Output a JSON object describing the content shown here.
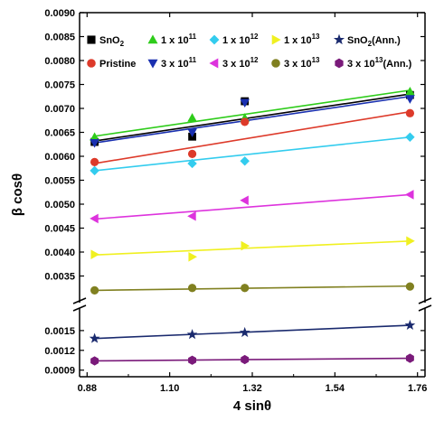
{
  "chart_data": {
    "type": "scatter",
    "xlabel": "4 sinθ",
    "ylabel": "β cosθ",
    "xlim": [
      0.86,
      1.78
    ],
    "x_ticks": [
      "0.88",
      "1.10",
      "1.32",
      "1.54",
      "1.76"
    ],
    "y_axis_break": {
      "between": [
        0.0018,
        0.003
      ]
    },
    "upper_panel": {
      "ylim": [
        0.003,
        0.009
      ],
      "y_ticks": [
        "0.0035",
        "0.0040",
        "0.0045",
        "0.0050",
        "0.0055",
        "0.0060",
        "0.0065",
        "0.0070",
        "0.0075",
        "0.0080",
        "0.0085",
        "0.0090"
      ]
    },
    "lower_panel": {
      "ylim": [
        0.0008,
        0.0018
      ],
      "y_ticks": [
        "0.0009",
        "0.0012",
        "0.0015"
      ]
    },
    "x": [
      0.9,
      1.16,
      1.3,
      1.74
    ],
    "legend_position": "top",
    "series": [
      {
        "name": "SnO2",
        "name_main": "SnO",
        "name_sub": "2",
        "name_sup": "",
        "name_tail": "",
        "marker": "square",
        "color": "#000000",
        "values": [
          0.0063,
          0.00641,
          0.00715,
          0.00728
        ],
        "fit": [
          0.00632,
          0.0073
        ]
      },
      {
        "name": "1 x 10^11",
        "name_main": "1 x 10",
        "name_sub": "",
        "name_sup": "11",
        "name_tail": "",
        "marker": "triangle-up",
        "color": "#2ecc1a",
        "values": [
          0.0064,
          0.0068,
          0.0068,
          0.00735
        ],
        "fit": [
          0.00642,
          0.00738
        ]
      },
      {
        "name": "1 x 10^12",
        "name_main": "1 x 10",
        "name_sub": "",
        "name_sup": "12",
        "name_tail": "",
        "marker": "diamond",
        "color": "#33ccee",
        "values": [
          0.0057,
          0.00585,
          0.0059,
          0.0064
        ],
        "fit": [
          0.0057,
          0.0064
        ]
      },
      {
        "name": "1 x 10^13",
        "name_main": "1 x 10",
        "name_sub": "",
        "name_sup": "13",
        "name_tail": "",
        "marker": "triangle-right",
        "color": "#f0f020",
        "values": [
          0.00395,
          0.0039,
          0.00413,
          0.00423
        ],
        "fit": [
          0.00394,
          0.00423
        ]
      },
      {
        "name": "SnO2(Ann.)",
        "name_main": "SnO",
        "name_sub": "2",
        "name_sup": "",
        "name_tail": "(Ann.)",
        "marker": "star",
        "color": "#1a2a6e",
        "values": [
          0.00138,
          0.00144,
          0.00147,
          0.00158
        ],
        "fit": [
          0.00138,
          0.00158
        ]
      },
      {
        "name": "Pristine",
        "name_main": "Pristine",
        "name_sub": "",
        "name_sup": "",
        "name_tail": "",
        "marker": "circle",
        "color": "#dd3a2a",
        "values": [
          0.00588,
          0.00605,
          0.00672,
          0.0069
        ],
        "fit": [
          0.00585,
          0.00693
        ]
      },
      {
        "name": "3 x 10^11",
        "name_main": "3 x 10",
        "name_sub": "",
        "name_sup": "11",
        "name_tail": "",
        "marker": "triangle-down",
        "color": "#1a30b0",
        "values": [
          0.00628,
          0.0065,
          0.00712,
          0.0072
        ],
        "fit": [
          0.00628,
          0.00725
        ]
      },
      {
        "name": "3 x 10^12",
        "name_main": "3 x 10",
        "name_sub": "",
        "name_sup": "12",
        "name_tail": "",
        "marker": "triangle-left",
        "color": "#dd33dd",
        "values": [
          0.0047,
          0.00475,
          0.00508,
          0.0052
        ],
        "fit": [
          0.00469,
          0.0052
        ]
      },
      {
        "name": "3 x 10^13",
        "name_main": "3 x 10",
        "name_sub": "",
        "name_sup": "13",
        "name_tail": "",
        "marker": "circle",
        "color": "#808020",
        "values": [
          0.0032,
          0.00325,
          0.00325,
          0.00328
        ],
        "fit": [
          0.0032,
          0.00329
        ]
      },
      {
        "name": "3 x 10^13(Ann.)",
        "name_main": "3 x 10",
        "name_sub": "",
        "name_sup": "13",
        "name_tail": "(Ann.)",
        "marker": "hexagon",
        "color": "#7a1a7a",
        "values": [
          0.00104,
          0.00105,
          0.00106,
          0.00108
        ],
        "fit": [
          0.00104,
          0.00108
        ]
      }
    ]
  }
}
